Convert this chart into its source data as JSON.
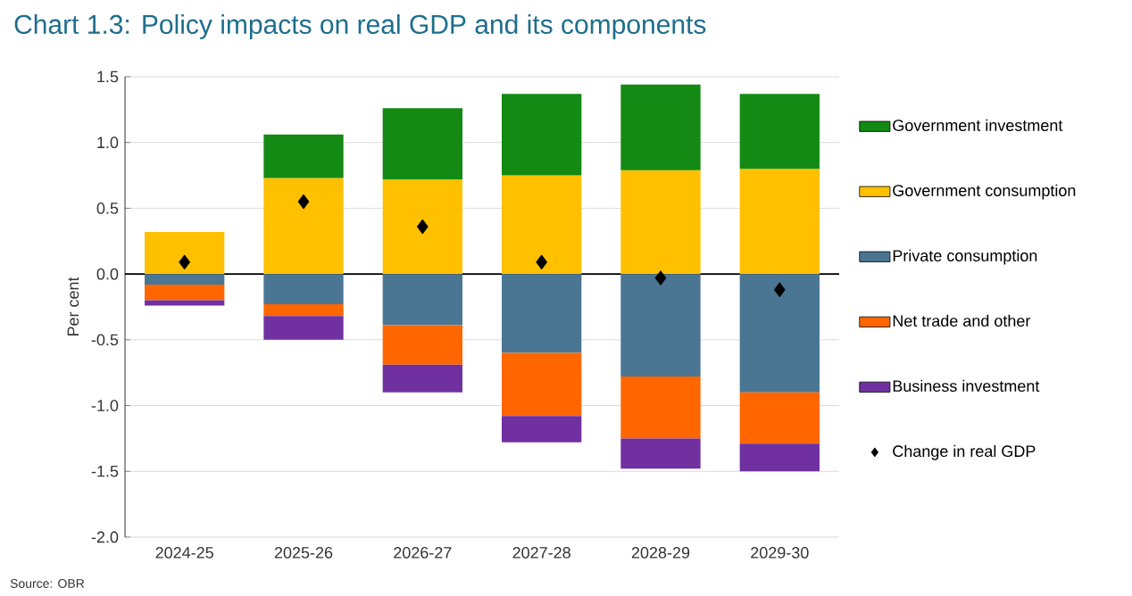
{
  "chart_data": {
    "type": "bar",
    "title": "Chart 1.3: Policy impacts on real GDP and its components",
    "ylabel": "Per cent",
    "annotations": [
      "Source: OBR"
    ],
    "categories": [
      "2024-25",
      "2025-26",
      "2026-27",
      "2027-28",
      "2028-29",
      "2029-30"
    ],
    "stacked": true,
    "series": [
      {
        "name": "Government consumption",
        "color": "#ffc000",
        "values": [
          0.32,
          0.73,
          0.72,
          0.75,
          0.79,
          0.8
        ]
      },
      {
        "name": "Government investment",
        "color": "#138a13",
        "values": [
          0,
          0.33,
          0.54,
          0.62,
          0.65,
          0.57
        ]
      },
      {
        "name": "Private consumption",
        "color": "#4a7694",
        "values": [
          -0.08,
          -0.23,
          -0.39,
          -0.6,
          -0.78,
          -0.9
        ]
      },
      {
        "name": "Net trade and other",
        "color": "#ff6600",
        "values": [
          -0.12,
          -0.09,
          -0.3,
          -0.48,
          -0.47,
          -0.39
        ]
      },
      {
        "name": "Business investment",
        "color": "#7030a0",
        "values": [
          -0.04,
          -0.18,
          -0.21,
          -0.2,
          -0.23,
          -0.21
        ]
      },
      {
        "name": "Change in real GDP",
        "type": "scatter",
        "marker": "diamond",
        "color": "#000000",
        "values": [
          0.09,
          0.55,
          0.36,
          0.09,
          -0.03,
          -0.12
        ]
      }
    ],
    "ylim": [
      -2.0,
      1.5
    ],
    "yticks": [
      {
        "value": -2.0,
        "label": "-2.0"
      },
      -1.5,
      {
        "value": -1.0,
        "label": "-1.0"
      },
      -0.5,
      {
        "value": 0,
        "label": "0.0"
      },
      0.5,
      {
        "value": 1.0,
        "label": "1.0"
      },
      1.5
    ],
    "grid": "y",
    "legend": "right"
  }
}
